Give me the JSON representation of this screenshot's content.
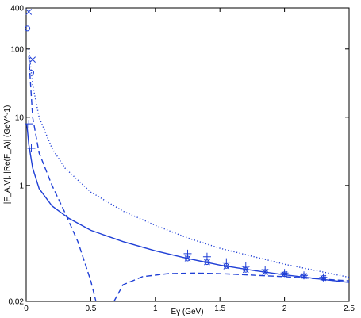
{
  "chart_data": {
    "type": "line",
    "xlabel": "Eγ (GeV)",
    "ylabel": "|F_A,V|, |Re(F_A)| (GeV^-1)",
    "xlim": [
      0,
      2.5
    ],
    "xticks": [
      0,
      0.5,
      1,
      1.5,
      2,
      2.5
    ],
    "ylim": [
      0.02,
      400
    ],
    "yticks": [
      0.02,
      1,
      10,
      100,
      400
    ],
    "log_y": true,
    "series": [
      {
        "style": "solid",
        "color": "#1f3fd6",
        "x": [
          0.005,
          0.02,
          0.05,
          0.1,
          0.2,
          0.33,
          0.5,
          0.75,
          1,
          1.25,
          1.5,
          1.75,
          2,
          2.25,
          2.5
        ],
        "values": [
          8,
          4,
          1.8,
          0.9,
          0.5,
          0.33,
          0.22,
          0.15,
          0.11,
          0.085,
          0.068,
          0.057,
          0.049,
          0.043,
          0.038
        ]
      },
      {
        "style": "dashed",
        "color": "#1f3fd6",
        "x": [
          0.02,
          0.05,
          0.1,
          0.2,
          0.3,
          0.4,
          0.5,
          0.54,
          0.6,
          0.68,
          0.75,
          0.9,
          1.1,
          1.3,
          1.5,
          2,
          2.5
        ],
        "values": [
          80,
          10,
          3,
          1,
          0.4,
          0.15,
          0.04,
          0.02,
          null,
          0.02,
          0.035,
          0.046,
          0.051,
          0.052,
          0.051,
          0.046,
          0.04
        ]
      },
      {
        "style": "dotted",
        "color": "#1f3fd6",
        "x": [
          0.02,
          0.05,
          0.1,
          0.2,
          0.3,
          0.5,
          0.75,
          1,
          1.25,
          1.5,
          2,
          2.5
        ],
        "values": [
          100,
          30,
          10,
          3.5,
          1.8,
          0.8,
          0.42,
          0.26,
          0.17,
          0.12,
          0.07,
          0.045
        ]
      },
      {
        "style": "x",
        "color": "#1f3fd6",
        "x": [
          0.02,
          0.05,
          1.25,
          1.4,
          1.55,
          1.7,
          1.85,
          2,
          2.15,
          2.3
        ],
        "values": [
          350,
          70,
          0.085,
          0.075,
          0.065,
          0.058,
          0.054,
          0.05,
          0.047,
          0.044
        ]
      },
      {
        "style": "o",
        "color": "#1f3fd6",
        "x": [
          0.01,
          0.04,
          1.25,
          1.4,
          1.55,
          1.7,
          1.85,
          2,
          2.15,
          2.3
        ],
        "values": [
          200,
          45,
          0.085,
          0.075,
          0.066,
          0.058,
          0.054,
          0.05,
          0.047,
          0.044
        ]
      },
      {
        "style": "+",
        "color": "#1f3fd6",
        "x": [
          0.02,
          0.04,
          1.25,
          1.4,
          1.55,
          1.7,
          1.85,
          2,
          2.15,
          2.3
        ],
        "values": [
          8,
          3.5,
          0.1,
          0.09,
          0.075,
          0.065,
          0.058,
          0.052,
          0.048,
          0.045
        ]
      }
    ]
  }
}
